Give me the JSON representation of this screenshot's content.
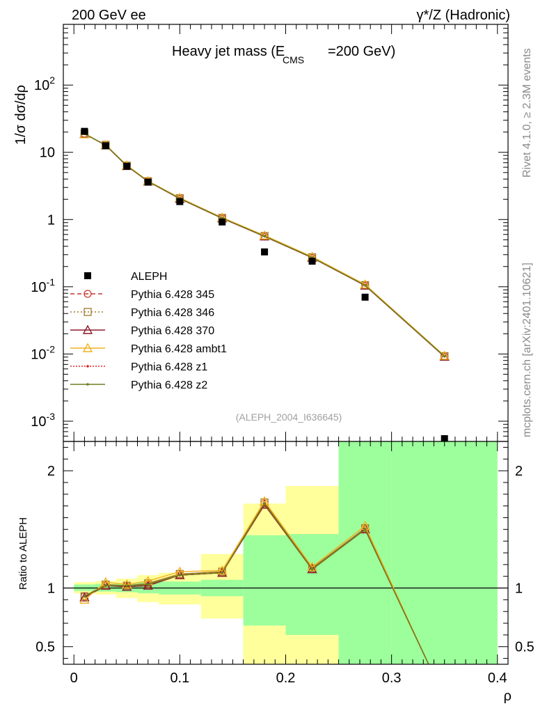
{
  "header": {
    "left": "200 GeV ee",
    "right": "γ*/Z (Hadronic)"
  },
  "side_labels": {
    "rivet": "Rivet 4.1.0, ≥ 2.3M events",
    "mcplots": "mcplots.cern.ch [arXiv:2401.10621]"
  },
  "colors": {
    "data": "#000000",
    "p345": "#c0392b",
    "p346": "#a0782c",
    "p370": "#8b1a2a",
    "ambt1": "#f2b01e",
    "z1": "#e02020",
    "z2": "#6b7f1e",
    "band_stat": "#9cff9c",
    "band_syst": "#ffff9c"
  },
  "chart_data": [
    {
      "type": "scatter",
      "title_main": "Heavy jet mass (E",
      "title_sub": "CMS",
      "title_rest": "=200 GeV)",
      "ylabel": "1/σ dσ/dρ",
      "yscale": "log",
      "xlim": [
        -0.01,
        0.41
      ],
      "ylim": [
        0.0005,
        800
      ],
      "yticks": [
        0.001,
        0.01,
        0.1,
        1,
        10,
        100
      ],
      "ytick_labels": [
        {
          "base": "10",
          "exp": "-3"
        },
        {
          "base": "10",
          "exp": "-2"
        },
        {
          "base": "10",
          "exp": "-1"
        },
        {
          "base": "1",
          "exp": ""
        },
        {
          "base": "10",
          "exp": ""
        },
        {
          "base": "10",
          "exp": "2"
        }
      ],
      "watermark": "(ALEPH_2004_I636645)",
      "data_series": {
        "name": "ALEPH",
        "x": [
          0.01,
          0.03,
          0.05,
          0.07,
          0.1,
          0.14,
          0.18,
          0.225,
          0.275,
          0.35
        ],
        "y": [
          20.5,
          12.5,
          6.2,
          3.6,
          1.85,
          0.92,
          0.33,
          0.24,
          0.07,
          0.00055
        ]
      },
      "mc_x": [
        0.01,
        0.03,
        0.05,
        0.07,
        0.1,
        0.14,
        0.18,
        0.225,
        0.275,
        0.35
      ],
      "series": [
        {
          "name": "Pythia 6.428 345",
          "key": "p345",
          "marker": "circle",
          "dash": "6,4",
          "y": [
            18.9,
            12.8,
            6.3,
            3.7,
            2.05,
            1.05,
            0.56,
            0.27,
            0.105,
            0.0092
          ]
        },
        {
          "name": "Pythia 6.428 346",
          "key": "p346",
          "marker": "square",
          "dash": "2,3",
          "y": [
            19.0,
            12.9,
            6.35,
            3.72,
            2.08,
            1.06,
            0.57,
            0.275,
            0.106,
            0.0093
          ]
        },
        {
          "name": "Pythia 6.428 370",
          "key": "p370",
          "marker": "triangle",
          "dash": "",
          "y": [
            18.8,
            12.7,
            6.25,
            3.68,
            2.04,
            1.04,
            0.56,
            0.27,
            0.104,
            0.0091
          ]
        },
        {
          "name": "Pythia 6.428 ambt1",
          "key": "ambt1",
          "marker": "triangle",
          "dash": "",
          "y": [
            18.5,
            12.9,
            6.4,
            3.75,
            2.1,
            1.07,
            0.58,
            0.28,
            0.108,
            0.0094
          ]
        },
        {
          "name": "Pythia 6.428 z1",
          "key": "z1",
          "marker": "dot",
          "dash": "2,2",
          "y": [
            18.9,
            12.8,
            6.3,
            3.7,
            2.06,
            1.05,
            0.565,
            0.272,
            0.105,
            0.0092
          ]
        },
        {
          "name": "Pythia 6.428 z2",
          "key": "z2",
          "marker": "dot",
          "dash": "",
          "y": [
            18.9,
            12.8,
            6.3,
            3.7,
            2.06,
            1.05,
            0.565,
            0.272,
            0.105,
            0.0092
          ]
        }
      ]
    },
    {
      "type": "line",
      "ylabel": "Ratio to ALEPH",
      "xlabel": "ρ",
      "xlim": [
        -0.01,
        0.41
      ],
      "ylim": [
        0.35,
        2.25
      ],
      "yticks": [
        0.5,
        1,
        2
      ],
      "ytick_labels": [
        "0.5",
        "1",
        "2"
      ],
      "xticks": [
        0,
        0.1,
        0.2,
        0.3,
        0.4
      ],
      "xtick_labels": [
        "0",
        "0.1",
        "0.2",
        "0.3",
        "0.4"
      ],
      "bins": [
        {
          "lo": 0.0,
          "hi": 0.02,
          "stat": [
            0.975,
            1.03
          ],
          "syst": [
            0.955,
            1.05
          ]
        },
        {
          "lo": 0.02,
          "hi": 0.04,
          "stat": [
            0.97,
            1.035
          ],
          "syst": [
            0.945,
            1.06
          ]
        },
        {
          "lo": 0.04,
          "hi": 0.06,
          "stat": [
            0.965,
            1.04
          ],
          "syst": [
            0.915,
            1.08
          ]
        },
        {
          "lo": 0.06,
          "hi": 0.08,
          "stat": [
            0.955,
            1.05
          ],
          "syst": [
            0.88,
            1.11
          ]
        },
        {
          "lo": 0.08,
          "hi": 0.12,
          "stat": [
            0.945,
            1.055
          ],
          "syst": [
            0.86,
            1.13
          ]
        },
        {
          "lo": 0.12,
          "hi": 0.16,
          "stat": [
            0.93,
            1.07
          ],
          "syst": [
            0.74,
            1.29
          ]
        },
        {
          "lo": 0.16,
          "hi": 0.2,
          "stat": [
            0.35,
            1.45
          ],
          "syst": [
            0.35,
            1.72
          ]
        },
        {
          "lo": 0.2,
          "hi": 0.25,
          "stat": [
            0.35,
            1.46
          ],
          "syst": [
            0.35,
            1.87
          ]
        },
        {
          "lo": 0.25,
          "hi": 0.3,
          "stat": [
            0.35,
            2.25
          ],
          "syst": [
            0.35,
            2.25
          ]
        },
        {
          "lo": 0.3,
          "hi": 0.4,
          "stat": [
            0.35,
            2.25
          ],
          "syst": [
            0.35,
            2.25
          ]
        }
      ],
      "band_syst_low_bins": [
        {
          "lo": 0.16,
          "hi": 0.2,
          "low": 0.68
        },
        {
          "lo": 0.2,
          "hi": 0.25,
          "low": 0.6
        }
      ],
      "mc_x": [
        0.01,
        0.03,
        0.05,
        0.07,
        0.1,
        0.14,
        0.18,
        0.225,
        0.275,
        0.335
      ],
      "series": [
        {
          "key": "p345",
          "marker": "circle",
          "y": [
            0.93,
            1.02,
            1.02,
            1.03,
            1.11,
            1.13,
            1.72,
            1.16,
            1.5,
            0.35
          ]
        },
        {
          "key": "p346",
          "marker": "square",
          "y": [
            0.93,
            1.03,
            1.02,
            1.04,
            1.12,
            1.14,
            1.73,
            1.17,
            1.51,
            0.35
          ]
        },
        {
          "key": "p370",
          "marker": "triangle",
          "y": [
            0.92,
            1.02,
            1.01,
            1.02,
            1.11,
            1.13,
            1.71,
            1.16,
            1.5,
            0.35
          ]
        },
        {
          "key": "ambt1",
          "marker": "triangle",
          "y": [
            0.9,
            1.05,
            1.03,
            1.06,
            1.14,
            1.15,
            1.74,
            1.18,
            1.53,
            0.35
          ]
        },
        {
          "key": "z1",
          "marker": "dot",
          "y": [
            0.93,
            1.02,
            1.02,
            1.03,
            1.11,
            1.13,
            1.72,
            1.16,
            1.5,
            0.35
          ]
        },
        {
          "key": "z2",
          "marker": "dot",
          "y": [
            0.93,
            1.02,
            1.02,
            1.03,
            1.11,
            1.13,
            1.72,
            1.16,
            1.5,
            0.35
          ]
        }
      ]
    }
  ]
}
